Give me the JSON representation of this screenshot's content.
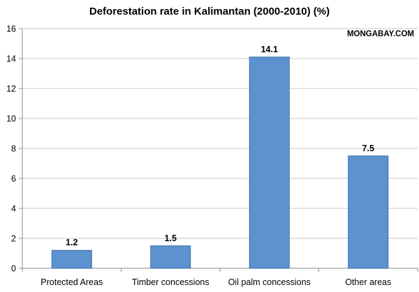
{
  "chart_data": {
    "type": "bar",
    "title": "Deforestation rate in Kalimantan (2000-2010) (%)",
    "watermark": "MONGABAY.COM",
    "categories": [
      "Protected Areas",
      "Timber concessions",
      "Oil palm concessions",
      "Other areas"
    ],
    "values": [
      1.2,
      1.5,
      14.1,
      7.5
    ],
    "data_labels": [
      "1.2",
      "1.5",
      "14.1",
      "7.5"
    ],
    "xlabel": "",
    "ylabel": "",
    "ylim": [
      0,
      16
    ],
    "yticks": [
      0,
      2,
      4,
      6,
      8,
      10,
      12,
      14,
      16
    ],
    "grid": true,
    "legend": "none",
    "colors": {
      "bar_fill": "#5b92cf",
      "bar_stroke": "#3f6fa3",
      "grid": "#c8c8c8",
      "axis": "#8c8c8c"
    }
  }
}
